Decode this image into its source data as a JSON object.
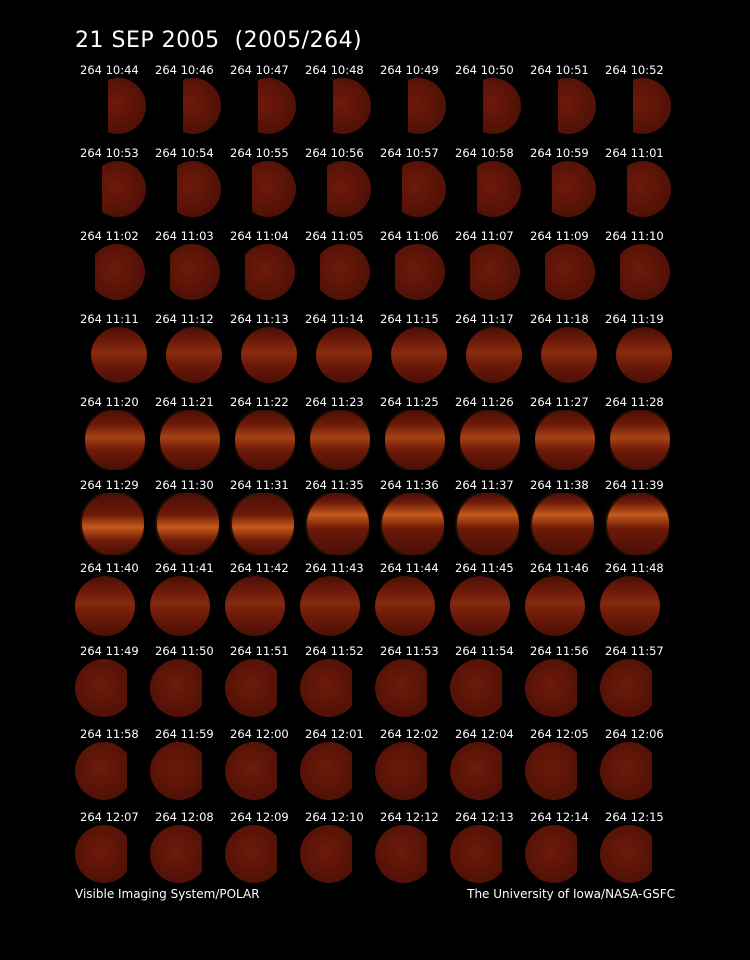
{
  "title": "21 SEP 2005  (2005/264)",
  "footer": {
    "left": "Visible Imaging System/POLAR",
    "right": "The University of Iowa/NASA-GSFC"
  },
  "colors": {
    "background": "#000000",
    "text": "#ffffff",
    "disk_dark": "#4a0f06",
    "disk_mid": "#6e1a09",
    "aurora_glow": "#d2641e"
  },
  "frames": [
    "264 10:44",
    "264 10:46",
    "264 10:47",
    "264 10:48",
    "264 10:49",
    "264 10:50",
    "264 10:51",
    "264 10:52",
    "264 10:53",
    "264 10:54",
    "264 10:55",
    "264 10:56",
    "264 10:57",
    "264 10:58",
    "264 10:59",
    "264 11:01",
    "264 11:02",
    "264 11:03",
    "264 11:04",
    "264 11:05",
    "264 11:06",
    "264 11:07",
    "264 11:09",
    "264 11:10",
    "264 11:11",
    "264 11:12",
    "264 11:13",
    "264 11:14",
    "264 11:15",
    "264 11:17",
    "264 11:18",
    "264 11:19",
    "264 11:20",
    "264 11:21",
    "264 11:22",
    "264 11:23",
    "264 11:25",
    "264 11:26",
    "264 11:27",
    "264 11:28",
    "264 11:29",
    "264 11:30",
    "264 11:31",
    "264 11:35",
    "264 11:36",
    "264 11:37",
    "264 11:38",
    "264 11:39",
    "264 11:40",
    "264 11:41",
    "264 11:42",
    "264 11:43",
    "264 11:44",
    "264 11:45",
    "264 11:46",
    "264 11:48",
    "264 11:49",
    "264 11:50",
    "264 11:51",
    "264 11:52",
    "264 11:53",
    "264 11:54",
    "264 11:56",
    "264 11:57",
    "264 11:58",
    "264 11:59",
    "264 12:00",
    "264 12:01",
    "264 12:02",
    "264 12:04",
    "264 12:05",
    "264 12:06",
    "264 12:07",
    "264 12:08",
    "264 12:09",
    "264 12:10",
    "264 12:12",
    "264 12:13",
    "264 12:14",
    "264 12:15"
  ]
}
